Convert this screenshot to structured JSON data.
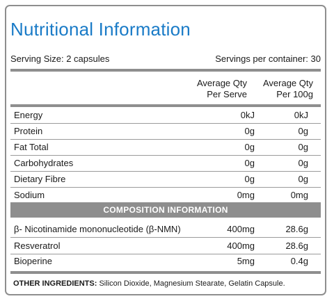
{
  "title": "Nutritional Information",
  "serving": {
    "size": "Serving Size: 2 capsules",
    "per_container": "Servings per container: 30"
  },
  "columns": {
    "per_serve": [
      "Average Qty",
      "Per Serve"
    ],
    "per_100g": [
      "Average Qty",
      "Per 100g"
    ]
  },
  "nutrients": [
    {
      "name": "Energy",
      "per_serve": "0kJ",
      "per_100g": "0kJ"
    },
    {
      "name": "Protein",
      "per_serve": "0g",
      "per_100g": "0g"
    },
    {
      "name": "Fat Total",
      "per_serve": "0g",
      "per_100g": "0g"
    },
    {
      "name": "Carbohydrates",
      "per_serve": "0g",
      "per_100g": "0g"
    },
    {
      "name": "Dietary Fibre",
      "per_serve": "0g",
      "per_100g": "0g"
    },
    {
      "name": "Sodium",
      "per_serve": "0mg",
      "per_100g": "0mg"
    }
  ],
  "composition_header": "COMPOSITION INFORMATION",
  "composition": [
    {
      "name": "β- Nicotinamide mononucleotide (β-NMN)",
      "per_serve": "400mg",
      "per_100g": "28.6g"
    },
    {
      "name": "Resveratrol",
      "per_serve": "400mg",
      "per_100g": "28.6g"
    },
    {
      "name": "Bioperine",
      "per_serve": "5mg",
      "per_100g": "0.4g"
    }
  ],
  "other_ingredients": {
    "label": "OTHER INGREDIENTS:",
    "text": "Silicon Dioxide, Magnesium Stearate, Gelatin Capsule."
  },
  "colors": {
    "title": "#1a7bc7",
    "rule": "#8e8e8e"
  }
}
